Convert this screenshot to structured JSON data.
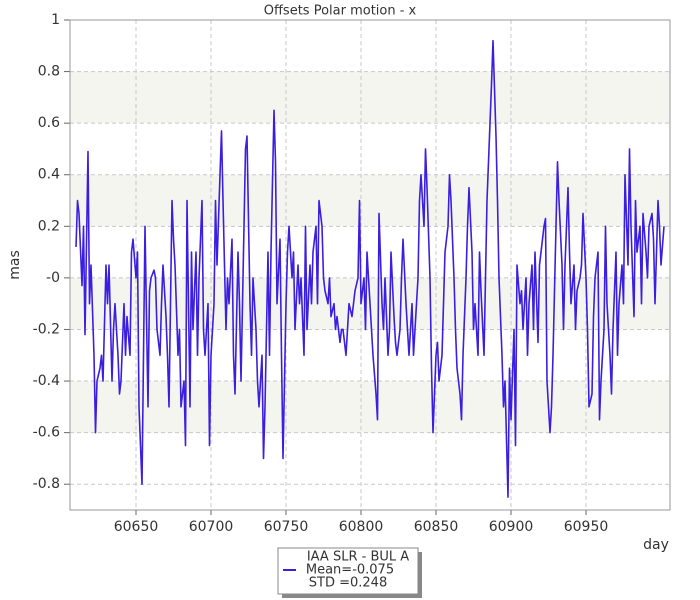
{
  "chart_data": {
    "type": "line",
    "title": "Offsets Polar motion - x",
    "x_label": "day",
    "y_label": "mas",
    "xlim": [
      60606,
      61006
    ],
    "ylim": [
      -0.9,
      1
    ],
    "xticks": [
      60650,
      60700,
      60750,
      60800,
      60850,
      60900,
      60950
    ],
    "yticks": [
      -0.8,
      -0.6,
      -0.4,
      -0.2,
      {
        "value": 0,
        "label": "-0"
      },
      0.2,
      0.4,
      0.6,
      0.8,
      1
    ],
    "grid": true,
    "legend_lines": [
      "Mean=-0.075",
      "STD =0.248"
    ],
    "x": [
      60610,
      60611,
      60612,
      60614,
      60615,
      60616,
      60618,
      60619,
      60620,
      60622,
      60623,
      60624,
      60626,
      60627,
      60628,
      60630,
      60631,
      60632,
      60634,
      60635,
      60636,
      60638,
      60639,
      60640,
      60642,
      60643,
      60644,
      60646,
      60647,
      60648,
      60650,
      60651,
      60652,
      60654,
      60655,
      60656,
      60658,
      60659,
      60660,
      60662,
      60663,
      60664,
      60666,
      60667,
      60668,
      60670,
      60671,
      60672,
      60674,
      60675,
      60676,
      60678,
      60679,
      60680,
      60682,
      60683,
      60684,
      60686,
      60687,
      60688,
      60690,
      60691,
      60692,
      60694,
      60695,
      60696,
      60698,
      60699,
      60700,
      60702,
      60703,
      60704,
      60706,
      60707,
      60708,
      60710,
      60711,
      60712,
      60714,
      60715,
      60716,
      60718,
      60719,
      60720,
      60722,
      60723,
      60724,
      60726,
      60727,
      60728,
      60730,
      60731,
      60732,
      60734,
      60735,
      60736,
      60738,
      60739,
      60740,
      60742,
      60743,
      60744,
      60746,
      60747,
      60748,
      60750,
      60751,
      60752,
      60754,
      60755,
      60756,
      60758,
      60759,
      60760,
      60762,
      60763,
      60764,
      60766,
      60767,
      60768,
      60770,
      60771,
      60772,
      60774,
      60775,
      60776,
      60778,
      60779,
      60780,
      60782,
      60783,
      60784,
      60786,
      60787,
      60788,
      60790,
      60791,
      60792,
      60794,
      60795,
      60796,
      60798,
      60799,
      60800,
      60802,
      60803,
      60804,
      60806,
      60807,
      60808,
      60810,
      60811,
      60812,
      60814,
      60815,
      60816,
      60818,
      60819,
      60820,
      60822,
      60823,
      60824,
      60826,
      60827,
      60828,
      60830,
      60831,
      60832,
      60834,
      60835,
      60836,
      60838,
      60839,
      60840,
      60842,
      60843,
      60844,
      60846,
      60847,
      60848,
      60850,
      60851,
      60852,
      60854,
      60855,
      60856,
      60858,
      60859,
      60860,
      60862,
      60863,
      60864,
      60866,
      60867,
      60868,
      60870,
      60871,
      60872,
      60874,
      60875,
      60876,
      60878,
      60879,
      60880,
      60882,
      60883,
      60884,
      60886,
      60887,
      60888,
      60890,
      60891,
      60892,
      60894,
      60895,
      60896,
      60898,
      60899,
      60900,
      60902,
      60903,
      60904,
      60906,
      60907,
      60908,
      60910,
      60911,
      60912,
      60914,
      60915,
      60916,
      60918,
      60919,
      60920,
      60922,
      60923,
      60924,
      60926,
      60927,
      60928,
      60930,
      60931,
      60932,
      60934,
      60935,
      60936,
      60938,
      60939,
      60940,
      60942,
      60943,
      60944,
      60946,
      60947,
      60948,
      60950,
      60951,
      60952,
      60954,
      60955,
      60956,
      60958,
      60959,
      60960,
      60962,
      60963,
      60964,
      60966,
      60967,
      60968,
      60970,
      60971,
      60972,
      60974,
      60975,
      60976,
      60978,
      60979,
      60980,
      60982,
      60983,
      60984,
      60986,
      60987,
      60988,
      60990,
      60991,
      60992,
      60994,
      60995,
      60996,
      60998,
      60999,
      61000,
      61002
    ],
    "series": [
      {
        "name": "IAA SLR - BUL A",
        "color": "#3b1fe0",
        "values": [
          0.12,
          0.3,
          0.25,
          -0.03,
          0.2,
          -0.22,
          0.49,
          -0.1,
          0.05,
          -0.3,
          -0.6,
          -0.4,
          -0.35,
          -0.3,
          -0.4,
          0.05,
          -0.1,
          0.05,
          -0.4,
          -0.2,
          -0.1,
          -0.3,
          -0.45,
          -0.4,
          -0.1,
          -0.3,
          -0.15,
          -0.3,
          0.1,
          0.15,
          0,
          0.1,
          -0.5,
          -0.8,
          -0.3,
          0.2,
          -0.5,
          -0.05,
          0,
          0.03,
          0,
          -0.2,
          -0.3,
          -0.1,
          0.05,
          -0.15,
          -0.3,
          -0.5,
          0.3,
          0.15,
          0.05,
          -0.3,
          -0.2,
          -0.5,
          -0.4,
          -0.65,
          0.3,
          -0.5,
          0.1,
          -0.2,
          0.1,
          -0.3,
          0,
          0.3,
          -0.2,
          -0.3,
          -0.1,
          -0.65,
          -0.3,
          -0.1,
          0.3,
          0.05,
          0.4,
          0.57,
          0.3,
          -0.2,
          0,
          -0.1,
          0.15,
          -0.3,
          -0.45,
          0.1,
          -0.1,
          -0.4,
          0.2,
          0.5,
          0.55,
          -0.1,
          -0.3,
          0,
          -0.2,
          -0.4,
          -0.5,
          -0.3,
          -0.7,
          -0.5,
          0.1,
          -0.3,
          0.1,
          0.65,
          0.45,
          -0.1,
          0.15,
          -0.3,
          -0.7,
          -0.1,
          0.1,
          0.2,
          0,
          0.1,
          -0.2,
          0.05,
          -0.1,
          0,
          -0.3,
          0.2,
          -0.2,
          0.05,
          -0.1,
          0.1,
          0.2,
          -0.1,
          0.3,
          0.2,
          0,
          -0.05,
          -0.1,
          0,
          -0.15,
          -0.1,
          -0.2,
          -0.15,
          -0.25,
          -0.2,
          -0.2,
          -0.3,
          -0.2,
          -0.1,
          -0.15,
          -0.1,
          -0.05,
          0,
          0.3,
          -0.1,
          0,
          -0.2,
          0.1,
          -0.1,
          -0.2,
          -0.3,
          -0.45,
          -0.55,
          0.25,
          -0.1,
          -0.2,
          0,
          -0.3,
          -0.2,
          0.1,
          -0.15,
          -0.25,
          -0.3,
          -0.2,
          0,
          0.15,
          -0.1,
          -0.2,
          -0.3,
          -0.1,
          -0.3,
          -0.2,
          0,
          0.3,
          0.4,
          0.2,
          0.5,
          0.35,
          0,
          -0.35,
          -0.6,
          -0.3,
          -0.25,
          -0.4,
          -0.3,
          -0.1,
          0.1,
          0.2,
          0.4,
          0.3,
          0,
          -0.2,
          -0.35,
          -0.45,
          -0.55,
          -0.3,
          0,
          0.2,
          0.35,
          0.1,
          -0.2,
          -0.1,
          -0.3,
          0.1,
          -0.05,
          -0.3,
          0,
          0.3,
          0.6,
          0.75,
          0.92,
          0.55,
          0.3,
          0,
          -0.3,
          -0.5,
          -0.4,
          -0.85,
          -0.35,
          -0.55,
          -0.2,
          -0.65,
          0.05,
          -0.1,
          -0.05,
          -0.2,
          0,
          -0.3,
          -0.1,
          0.05,
          -0.2,
          0.1,
          -0.25,
          0.05,
          0.1,
          0.2,
          0.23,
          -0.4,
          -0.6,
          -0.5,
          -0.3,
          0.2,
          0.45,
          0.3,
          0.05,
          -0.2,
          0.05,
          0.35,
          0.1,
          -0.1,
          0.05,
          -0.2,
          -0.05,
          0,
          0.05,
          0.25,
          0,
          -0.2,
          -0.5,
          -0.45,
          -0.15,
          0,
          0.1,
          -0.55,
          -0.4,
          -0.2,
          0.2,
          -0.1,
          -0.3,
          -0.45,
          -0.2,
          0.1,
          -0.3,
          -0.1,
          0.05,
          -0.1,
          0.4,
          0.05,
          0.5,
          0.2,
          -0.15,
          0.3,
          0.1,
          0.2,
          -0.1,
          0.25,
          0.1,
          0,
          0.2,
          0.25,
          0.15,
          -0.1,
          0.3,
          0.2,
          0.05,
          0.2
        ]
      }
    ]
  }
}
